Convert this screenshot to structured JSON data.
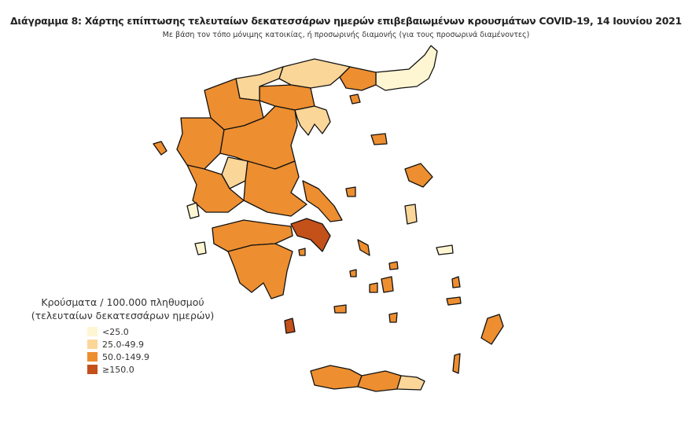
{
  "title": "Διάγραμμα 8: Χάρτης επίπτωσης τελευταίων δεκατεσσάρων ημερών επιβεβαιωμένων κρουσμάτων COVID-19, 14 Ιουνίου 2021",
  "subtitle": "Με βάση τον τόπο μόνιμης κατοικίας, ή προσωρινής διαμονής (για τους προσωρινά διαμένοντες)",
  "legend": {
    "title_line1": "Κρούσματα / 100.000 πληθυσμού",
    "title_line2": "(τελευταίων δεκατεσσάρων ημερών)",
    "classes": [
      {
        "label": "<25.0",
        "color": "#fef6d2"
      },
      {
        "label": "25.0-49.9",
        "color": "#fbd699"
      },
      {
        "label": "50.0-149.9",
        "color": "#ed8e30"
      },
      {
        "label": "≥150.0",
        "color": "#c4501a"
      }
    ]
  }
}
